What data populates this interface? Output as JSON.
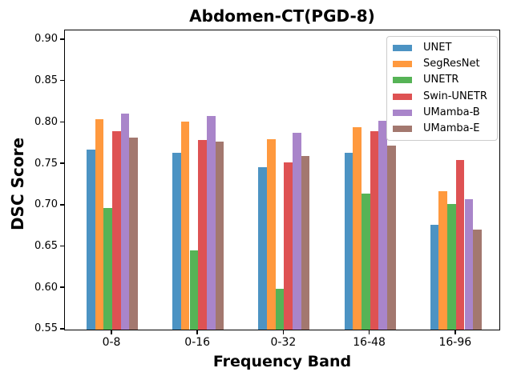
{
  "window": {
    "title": "Abdomen-CT(PGD-8)"
  },
  "chart_data": {
    "type": "bar",
    "title": "Abdomen-CT(PGD-8)",
    "xlabel": "Frequency Band",
    "ylabel": "DSC Score",
    "categories": [
      "0-8",
      "0-16",
      "0-32",
      "16-48",
      "16-96"
    ],
    "series": [
      {
        "name": "UNET",
        "color": "#4C93C3",
        "values": [
          0.766,
          0.762,
          0.744,
          0.762,
          0.675
        ]
      },
      {
        "name": "SegResNet",
        "color": "#FF993E",
        "values": [
          0.802,
          0.799,
          0.778,
          0.793,
          0.715
        ]
      },
      {
        "name": "UNETR",
        "color": "#56B356",
        "values": [
          0.695,
          0.644,
          0.597,
          0.712,
          0.7
        ]
      },
      {
        "name": "Swin-UNETR",
        "color": "#DE5253",
        "values": [
          0.788,
          0.777,
          0.75,
          0.788,
          0.753
        ]
      },
      {
        "name": "UMamba-B",
        "color": "#A985CA",
        "values": [
          0.809,
          0.806,
          0.786,
          0.8,
          0.706
        ]
      },
      {
        "name": "UMamba-E",
        "color": "#A3786F",
        "values": [
          0.78,
          0.775,
          0.758,
          0.77,
          0.669
        ]
      }
    ],
    "ylim": [
      0.55,
      0.9
    ],
    "yticks": [
      0.55,
      0.6,
      0.65,
      0.7,
      0.75,
      0.8,
      0.85,
      0.9
    ],
    "ytick_format_decimals": 2,
    "grid": false,
    "legend_position": "upper right",
    "axis_color": "#000000"
  }
}
